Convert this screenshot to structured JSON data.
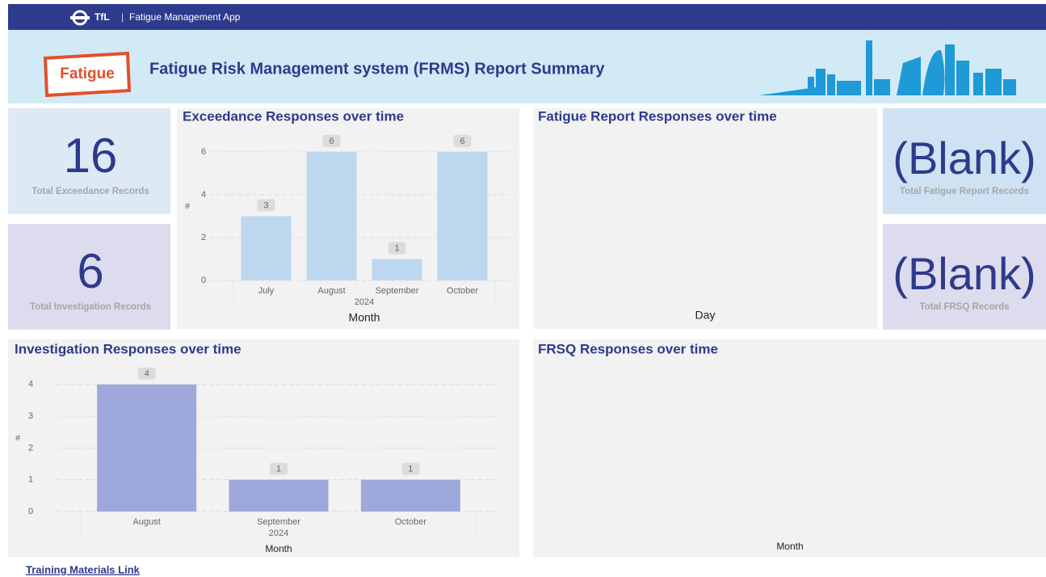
{
  "app_bar": {
    "brand": "TfL",
    "separator": "|",
    "app_name": "Fatigue Management App"
  },
  "banner": {
    "logo": "Fatigue",
    "title": "Fatigue Risk Management system (FRMS) Report Summary"
  },
  "cards": [
    {
      "value": 16,
      "label": "Total Exceedance Records"
    },
    {
      "value": 6,
      "label": "Total Investigation Records"
    },
    {
      "value": "(Blank)",
      "label": "Total Fatigue Report Records"
    },
    {
      "value": "(Blank)",
      "label": "Total FRSQ Records"
    }
  ],
  "charts": [
    {
      "type": "bar",
      "title": "Exceedance Responses over time",
      "categories": [
        "July",
        "August",
        "September",
        "October"
      ],
      "values": [
        3,
        6,
        1,
        6
      ],
      "x_group": "2024",
      "x_label": "Month",
      "y_label": "#",
      "ylim": [
        0,
        6.6
      ],
      "yticks": [
        0,
        2,
        4,
        6
      ],
      "color": "#bdd7ee",
      "grid": true
    },
    {
      "type": "empty",
      "title": "Fatigue Report Responses over time",
      "x_label": "Day"
    },
    {
      "type": "bar",
      "title": "Investigation Responses over time",
      "categories": [
        "August",
        "September",
        "October"
      ],
      "values": [
        4,
        1,
        1
      ],
      "x_group": "2024",
      "x_label": "Month",
      "y_label": "#",
      "ylim": [
        0,
        4.4
      ],
      "yticks": [
        0,
        1,
        2,
        3,
        4
      ],
      "color": "#9fa8da",
      "grid": true
    },
    {
      "type": "empty",
      "title": "FRSQ Responses over time",
      "x_label": "Month"
    }
  ],
  "footer_link": "Training Materials Link"
}
